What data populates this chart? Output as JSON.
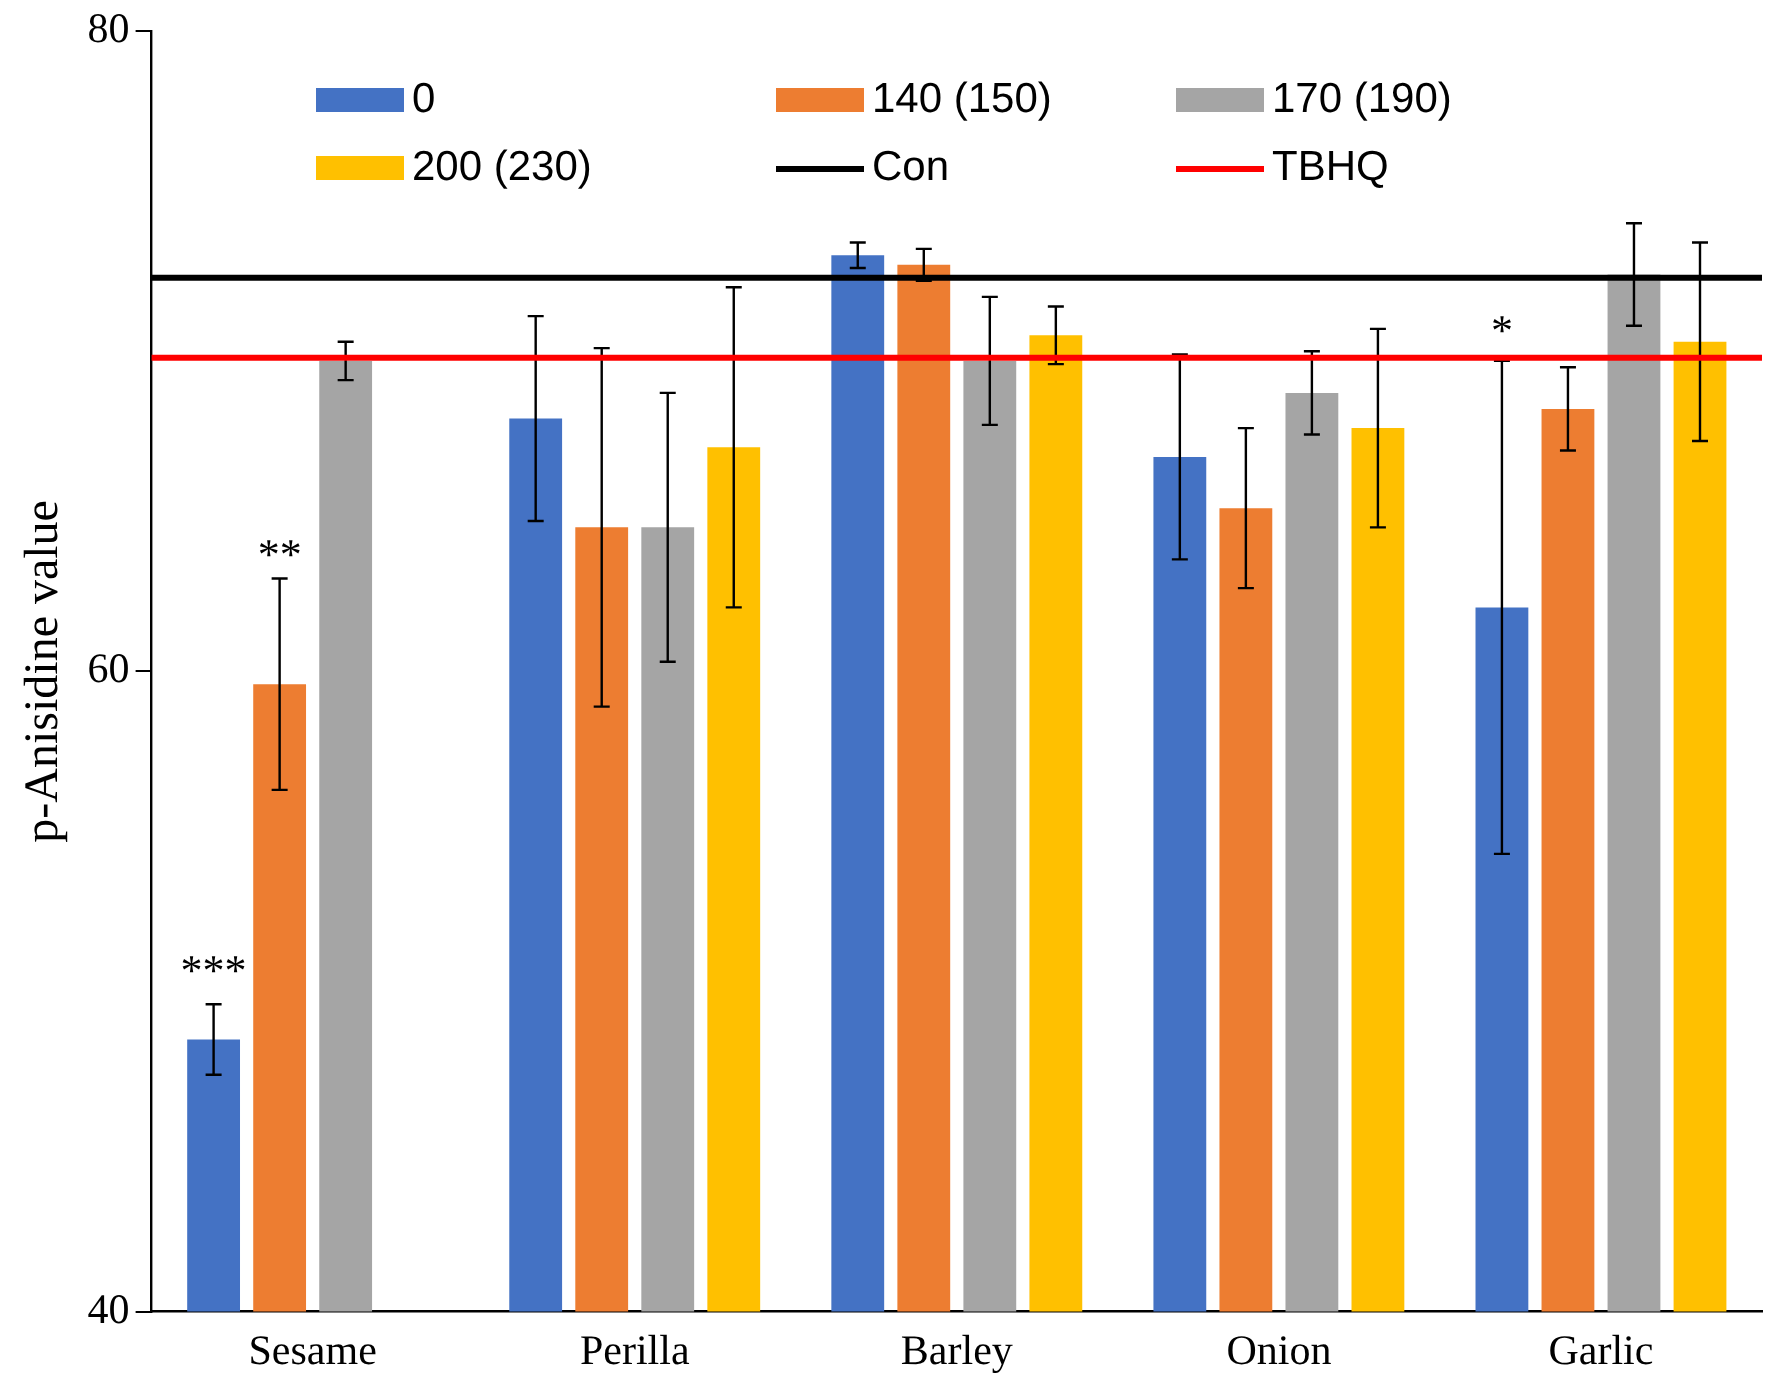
{
  "chart_data": {
    "type": "bar",
    "ylabel": "p-Anisidine value",
    "categories": [
      "Sesame",
      "Perilla",
      "Barley",
      "Onion",
      "Garlic"
    ],
    "series": [
      {
        "name": "0",
        "color": "#4472c4",
        "values": [
          48.5,
          67.9,
          73.0,
          66.7,
          62.0
        ],
        "errors": [
          1.1,
          3.2,
          0.4,
          3.2,
          7.7
        ]
      },
      {
        "name": "140 (150)",
        "color": "#ed7d31",
        "values": [
          59.6,
          64.5,
          72.7,
          65.1,
          68.2
        ],
        "errors": [
          3.3,
          5.6,
          0.5,
          2.5,
          1.3
        ]
      },
      {
        "name": "170 (190)",
        "color": "#a5a5a5",
        "values": [
          69.7,
          64.5,
          69.7,
          68.7,
          72.4
        ],
        "errors": [
          0.6,
          4.2,
          2.0,
          1.3,
          1.6
        ]
      },
      {
        "name": "200 (230)",
        "color": "#ffc000",
        "values": [
          null,
          67.0,
          70.5,
          67.6,
          70.3
        ],
        "errors": [
          null,
          5.0,
          0.9,
          3.1,
          3.1
        ]
      }
    ],
    "ref_lines": [
      {
        "axis": "y",
        "value": 72.3,
        "label": "Con",
        "color": "#000000"
      },
      {
        "axis": "y",
        "value": 69.8,
        "label": "TBHQ",
        "color": "#ff0000"
      }
    ],
    "annotations": [
      {
        "text": "***",
        "x": "Sesame",
        "y": 50.5
      },
      {
        "text": "**",
        "x": "Sesame",
        "y": 63.5
      },
      {
        "text": "*",
        "x": "Garlic",
        "y": 70.5
      }
    ],
    "ylim": [
      40,
      80
    ],
    "yticks": [
      40,
      60,
      80
    ],
    "grid": false,
    "legend": "top"
  }
}
